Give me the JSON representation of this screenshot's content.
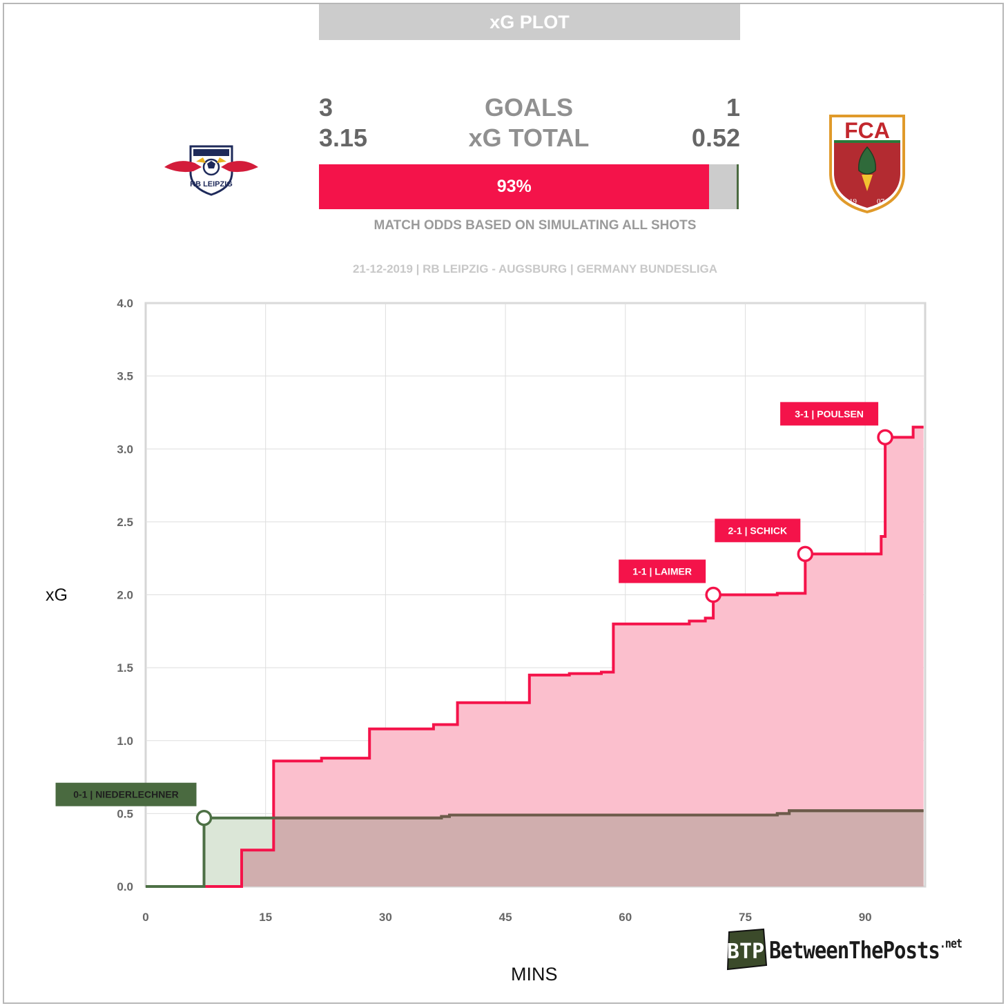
{
  "title": "xG PLOT",
  "scoreboard": {
    "home_goals": "3",
    "away_goals": "1",
    "goals_label": "GOALS",
    "home_xg": "3.15",
    "away_xg": "0.52",
    "xg_label": "xG TOTAL",
    "home_win_prob_label": "93%",
    "home_win_prob": 0.93,
    "draw_prob": 0.065,
    "away_win_prob": 0.005,
    "odds_caption": "MATCH ODDS BASED ON SIMULATING ALL SHOTS"
  },
  "match_info": "21-12-2019 | RB LEIPZIG - AUGSBURG | GERMANY BUNDESLIGA",
  "home_logo": {
    "icon": "rb-leipzig-crest-icon",
    "text": "RB LEIPZIG"
  },
  "away_logo": {
    "icon": "fc-augsburg-crest-icon",
    "text": "FCA",
    "year_left": "19",
    "year_right": "07"
  },
  "brand": {
    "icon": "btp-logo-icon",
    "mark": "BTP",
    "name": "BetweenThePosts",
    "suffix": ".net"
  },
  "colors": {
    "home_line": "#f4134a",
    "home_fill": "#fbbfcd",
    "away_line": "#4d7045",
    "away_fill": "#dbe6d7",
    "overlap_line": "#6d5a4a",
    "overlap_fill": "#d0aeae",
    "title_bg": "#cccccc",
    "draw_bar": "#cccccc"
  },
  "chart_data": {
    "type": "line",
    "step": true,
    "xlabel": "MINS",
    "ylabel": "xG",
    "xlim": [
      0,
      97.5
    ],
    "ylim": [
      0,
      4
    ],
    "xticks": [
      "0",
      "15",
      "30",
      "45",
      "60",
      "75",
      "90"
    ],
    "yticks": [
      "0.0",
      "0.5",
      "1.0",
      "1.5",
      "2.0",
      "2.5",
      "3.0",
      "3.5",
      "4.0"
    ],
    "grid": true,
    "series": [
      {
        "team": "RB Leipzig",
        "x": [
          0,
          12,
          16,
          22,
          28,
          36,
          39,
          48,
          53,
          57,
          58.5,
          68,
          70,
          71,
          79,
          82.5,
          92,
          92.5,
          96,
          97.3
        ],
        "y": [
          0,
          0.25,
          0.86,
          0.88,
          1.08,
          1.11,
          1.26,
          1.45,
          1.46,
          1.47,
          1.8,
          1.82,
          1.84,
          2.0,
          2.01,
          2.28,
          2.4,
          3.08,
          3.15,
          3.15
        ]
      },
      {
        "team": "Augsburg",
        "x": [
          0,
          7.3,
          37,
          38,
          79,
          80.5,
          97.3
        ],
        "y": [
          0,
          0.47,
          0.48,
          0.49,
          0.5,
          0.52,
          0.52
        ]
      }
    ],
    "annotations": [
      {
        "label": "0-1 | NIEDERLECHNER",
        "x": 7.3,
        "y": 0.47,
        "team": "Augsburg"
      },
      {
        "label": "1-1 | LAIMER",
        "x": 71,
        "y": 2.0,
        "team": "RB Leipzig"
      },
      {
        "label": "2-1 | SCHICK",
        "x": 82.5,
        "y": 2.28,
        "team": "RB Leipzig"
      },
      {
        "label": "3-1 | POULSEN",
        "x": 92.5,
        "y": 3.08,
        "team": "RB Leipzig"
      }
    ]
  }
}
